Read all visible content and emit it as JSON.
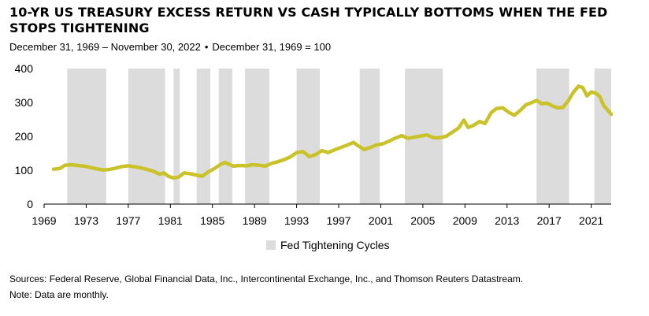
{
  "chart_data": {
    "type": "line",
    "title": "10-YR US TREASURY EXCESS RETURN VS CASH TYPICALLY BOTTOMS WHEN THE FED STOPS TIGHTENING",
    "subtitle_range": "December 31, 1969 – November 30, 2022",
    "subtitle_separator": "•",
    "subtitle_base": "December 31, 1969 = 100",
    "xlim": [
      1969,
      2022.9
    ],
    "ylim": [
      0,
      400
    ],
    "y_ticks": [
      0,
      100,
      200,
      300,
      400
    ],
    "x_tick_labels": [
      "1969",
      "1973",
      "1977",
      "1981",
      "1985",
      "1989",
      "1993",
      "1997",
      "2001",
      "2005",
      "2009",
      "2013",
      "2017",
      "2021"
    ],
    "x_tick_values": [
      1969,
      1973,
      1977,
      1981,
      1985,
      1989,
      1993,
      1997,
      2001,
      2005,
      2009,
      2013,
      2017,
      2021
    ],
    "line_color": "#c9c229",
    "band_color": "#dcdcdc",
    "tightening_cycles": [
      [
        1971.2,
        1974.9
      ],
      [
        1977.0,
        1980.5
      ],
      [
        1981.3,
        1981.9
      ],
      [
        1983.5,
        1984.8
      ],
      [
        1985.6,
        1986.9
      ],
      [
        1988.1,
        1990.4
      ],
      [
        1993.0,
        1995.2
      ],
      [
        1999.0,
        2000.9
      ],
      [
        2003.3,
        2006.9
      ],
      [
        2015.8,
        2018.9
      ],
      [
        2021.3,
        2022.9
      ]
    ],
    "series": [
      {
        "name": "10-YR US Treasury excess return vs cash",
        "x": [
          1969.9,
          1970.5,
          1971.0,
          1971.6,
          1972.2,
          1972.8,
          1973.4,
          1974.0,
          1974.6,
          1975.2,
          1975.8,
          1976.4,
          1977.0,
          1977.6,
          1978.2,
          1978.8,
          1979.4,
          1980.0,
          1980.4,
          1980.8,
          1981.3,
          1981.8,
          1982.3,
          1982.8,
          1983.4,
          1984.0,
          1984.6,
          1985.2,
          1985.8,
          1986.2,
          1986.6,
          1987.0,
          1987.6,
          1988.2,
          1988.8,
          1989.4,
          1990.0,
          1990.6,
          1991.2,
          1991.8,
          1992.4,
          1993.0,
          1993.6,
          1994.2,
          1994.8,
          1995.4,
          1996.0,
          1996.6,
          1997.2,
          1997.8,
          1998.4,
          1998.8,
          1999.4,
          2000.0,
          2000.6,
          2001.2,
          2001.8,
          2002.4,
          2003.0,
          2003.6,
          2004.2,
          2004.8,
          2005.4,
          2006.0,
          2006.6,
          2007.2,
          2007.8,
          2008.4,
          2008.9,
          2009.3,
          2009.8,
          2010.4,
          2010.9,
          2011.5,
          2012.0,
          2012.6,
          2013.2,
          2013.7,
          2014.3,
          2014.8,
          2015.3,
          2015.8,
          2016.3,
          2016.8,
          2017.3,
          2017.8,
          2018.3,
          2018.8,
          2019.3,
          2019.8,
          2020.2,
          2020.6,
          2021.0,
          2021.4,
          2021.8,
          2022.2,
          2022.6,
          2022.9
        ],
        "values": [
          103,
          105,
          115,
          116,
          114,
          112,
          108,
          104,
          101,
          102,
          106,
          111,
          113,
          110,
          107,
          102,
          97,
          88,
          92,
          82,
          77,
          80,
          92,
          90,
          86,
          82,
          95,
          105,
          118,
          123,
          117,
          112,
          114,
          113,
          116,
          115,
          112,
          120,
          125,
          131,
          139,
          152,
          155,
          140,
          146,
          158,
          152,
          160,
          167,
          174,
          182,
          173,
          161,
          167,
          175,
          178,
          186,
          195,
          202,
          194,
          198,
          201,
          204,
          196,
          196,
          200,
          212,
          225,
          248,
          226,
          232,
          244,
          238,
          270,
          282,
          284,
          270,
          262,
          278,
          293,
          299,
          306,
          296,
          298,
          290,
          284,
          285,
          304,
          330,
          348,
          344,
          319,
          331,
          328,
          318,
          290,
          276,
          265
        ]
      }
    ],
    "legend_label": "Fed Tightening Cycles",
    "legend_position": "bottom-center"
  },
  "footnotes": {
    "sources": "Sources: Federal Reserve, Global Financial Data, Inc., Intercontinental Exchange, Inc., and Thomson Reuters Datastream.",
    "note": "Note: Data are monthly."
  }
}
